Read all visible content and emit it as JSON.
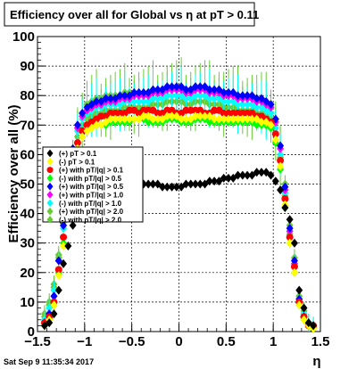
{
  "chart_data": {
    "type": "scatter",
    "title": "Efficiency over all for Global vs   η at pT > 0.11",
    "xlabel": "η",
    "ylabel": "Efficiency over all (%)",
    "xlim": [
      -1.5,
      1.5
    ],
    "ylim": [
      0,
      100
    ],
    "xticks": [
      "−1.5",
      "−1",
      "−0.5",
      "0",
      "0.5",
      "1",
      "1.5"
    ],
    "yticks": [
      "0",
      "10",
      "20",
      "30",
      "40",
      "50",
      "60",
      "70",
      "80",
      "90",
      "100"
    ],
    "grid": true,
    "legend_position": "middle-left",
    "timestamp": "Sat Sep  9 11:35:34 2017",
    "series": [
      {
        "name": "(+) pT > 0.1",
        "color": "#000000",
        "marker": "diamond",
        "plateau": 50,
        "errors": false
      },
      {
        "name": "(-) pT > 0.1",
        "color": "#ffff00",
        "marker": "diamond",
        "plateau": 72,
        "errors": false
      },
      {
        "name": "(+) with pT/|q| > 0.1",
        "color": "#ff0000",
        "marker": "circle",
        "plateau": 74,
        "errors": false
      },
      {
        "name": "(-) with pT/|q| > 0.5",
        "color": "#00ff00",
        "marker": "diamond",
        "plateau": 71,
        "errors": false
      },
      {
        "name": "(+) with pT/|q| > 0.5",
        "color": "#0000ff",
        "marker": "diamond",
        "plateau": 79,
        "errors": false
      },
      {
        "name": "(+) with pT/|q| > 1.0",
        "color": "#ff00ff",
        "marker": "diamond",
        "plateau": 78,
        "errors": false
      },
      {
        "name": "(-) with pT/|q| > 1.0",
        "color": "#00ffff",
        "marker": "diamond",
        "plateau": 77,
        "errors": true
      },
      {
        "name": "(+) with pT/|q| > 2.0",
        "color": "#66cc33",
        "marker": "diamond",
        "plateau": 75,
        "errors": true
      },
      {
        "name": "(-) with pT/|q| > 2.0",
        "color": "#66cc33",
        "marker": "diamond",
        "plateau": 80,
        "errors": true
      }
    ],
    "series_data_x": [
      -1.425,
      -1.375,
      -1.325,
      -1.275,
      -1.225,
      -1.175,
      -1.125,
      -1.075,
      -1.025,
      -0.975,
      -0.925,
      -0.875,
      -0.825,
      -0.775,
      -0.725,
      -0.675,
      -0.625,
      -0.575,
      -0.525,
      -0.475,
      -0.425,
      -0.375,
      -0.325,
      -0.275,
      -0.225,
      -0.175,
      -0.125,
      -0.075,
      -0.025,
      0.025,
      0.075,
      0.125,
      0.175,
      0.225,
      0.275,
      0.325,
      0.375,
      0.425,
      0.475,
      0.525,
      0.575,
      0.625,
      0.675,
      0.725,
      0.775,
      0.825,
      0.875,
      0.925,
      0.975,
      1.025,
      1.075,
      1.125,
      1.175,
      1.225,
      1.275,
      1.325,
      1.375,
      1.425
    ],
    "series_data_y": {
      "(+) pT > 0.1": [
        2,
        3,
        6,
        14,
        23,
        29,
        36,
        41,
        44,
        46,
        47,
        47,
        48,
        48,
        48,
        48,
        48,
        48,
        49,
        49,
        49,
        50,
        50,
        50,
        50,
        49,
        49,
        49,
        49,
        49,
        50,
        50,
        50,
        50,
        50,
        51,
        51,
        51,
        52,
        52,
        52,
        53,
        53,
        53,
        53,
        54,
        54,
        54,
        53,
        51,
        48,
        42,
        38,
        30,
        14,
        8,
        3,
        2
      ],
      "(-) pT > 0.1": [
        2,
        4,
        9,
        19,
        29,
        42,
        54,
        62,
        66,
        68,
        69,
        70,
        70,
        71,
        72,
        72,
        72,
        72,
        72,
        72,
        72,
        73,
        73,
        72,
        72,
        72,
        73,
        73,
        73,
        72,
        72,
        72,
        73,
        73,
        73,
        73,
        72,
        72,
        72,
        72,
        72,
        72,
        72,
        72,
        72,
        72,
        71,
        71,
        70,
        65,
        56,
        43,
        30,
        20,
        9,
        4,
        2,
        1
      ],
      "(+) with pT/|q| > 0.1": [
        3,
        5,
        10,
        21,
        32,
        46,
        57,
        64,
        68,
        70,
        71,
        72,
        73,
        73,
        74,
        74,
        74,
        74,
        75,
        75,
        74,
        75,
        75,
        75,
        74,
        74,
        75,
        75,
        74,
        74,
        75,
        75,
        75,
        75,
        74,
        74,
        75,
        75,
        74,
        74,
        74,
        74,
        74,
        74,
        74,
        73,
        73,
        72,
        71,
        67,
        58,
        45,
        32,
        22,
        10,
        5,
        2,
        2
      ],
      "(-) with pT/|q| > 0.5": [
        2,
        4,
        9,
        20,
        30,
        44,
        55,
        62,
        66,
        68,
        69,
        70,
        70,
        70,
        71,
        71,
        71,
        71,
        71,
        72,
        72,
        72,
        71,
        71,
        71,
        71,
        72,
        72,
        72,
        71,
        71,
        71,
        72,
        72,
        72,
        71,
        71,
        71,
        71,
        71,
        71,
        71,
        71,
        71,
        71,
        70,
        70,
        70,
        69,
        64,
        55,
        42,
        30,
        20,
        9,
        4,
        2,
        1
      ],
      "(+) with pT/|q| > 0.5": [
        3,
        6,
        12,
        24,
        36,
        51,
        62,
        70,
        74,
        76,
        77,
        78,
        78,
        79,
        79,
        79,
        80,
        80,
        80,
        81,
        81,
        81,
        81,
        82,
        82,
        82,
        83,
        83,
        83,
        83,
        82,
        82,
        83,
        83,
        83,
        82,
        82,
        82,
        81,
        81,
        81,
        80,
        80,
        80,
        80,
        79,
        79,
        78,
        77,
        72,
        63,
        49,
        35,
        24,
        11,
        5,
        2,
        2
      ],
      "(+) with pT/|q| > 1.0": [
        3,
        6,
        12,
        24,
        36,
        50,
        61,
        69,
        73,
        75,
        76,
        77,
        77,
        78,
        78,
        78,
        79,
        79,
        79,
        80,
        80,
        80,
        80,
        81,
        81,
        81,
        82,
        82,
        82,
        82,
        81,
        81,
        82,
        82,
        82,
        81,
        81,
        81,
        80,
        80,
        80,
        79,
        79,
        79,
        79,
        78,
        78,
        77,
        76,
        71,
        62,
        48,
        34,
        23,
        10,
        5,
        2,
        2
      ],
      "(-) with pT/|q| > 1.0": [
        4,
        8,
        14,
        24,
        35,
        49,
        60,
        68,
        72,
        74,
        75,
        76,
        76,
        77,
        77,
        77,
        77,
        78,
        78,
        78,
        78,
        78,
        78,
        79,
        79,
        79,
        80,
        80,
        80,
        80,
        79,
        79,
        80,
        80,
        80,
        79,
        79,
        79,
        78,
        78,
        78,
        77,
        77,
        77,
        77,
        76,
        76,
        75,
        74,
        69,
        60,
        47,
        34,
        23,
        11,
        6,
        3,
        2
      ],
      "(+) with pT/|q| > 2.0": [
        5,
        9,
        15,
        25,
        35,
        48,
        58,
        66,
        70,
        72,
        73,
        74,
        74,
        75,
        75,
        75,
        75,
        76,
        76,
        76,
        76,
        76,
        76,
        77,
        77,
        77,
        78,
        78,
        78,
        78,
        77,
        77,
        78,
        78,
        78,
        77,
        77,
        77,
        76,
        76,
        76,
        75,
        75,
        75,
        75,
        74,
        74,
        73,
        72,
        67,
        59,
        46,
        33,
        22,
        11,
        6,
        3,
        2
      ],
      "(-) with pT/|q| > 2.0": [
        6,
        10,
        16,
        26,
        37,
        51,
        62,
        70,
        74,
        77,
        78,
        79,
        79,
        80,
        80,
        80,
        80,
        81,
        81,
        81,
        81,
        81,
        81,
        82,
        82,
        82,
        83,
        83,
        83,
        83,
        82,
        82,
        83,
        83,
        83,
        82,
        82,
        82,
        81,
        81,
        81,
        80,
        80,
        80,
        80,
        79,
        79,
        78,
        77,
        72,
        63,
        50,
        36,
        25,
        12,
        7,
        3,
        2
      ]
    }
  }
}
